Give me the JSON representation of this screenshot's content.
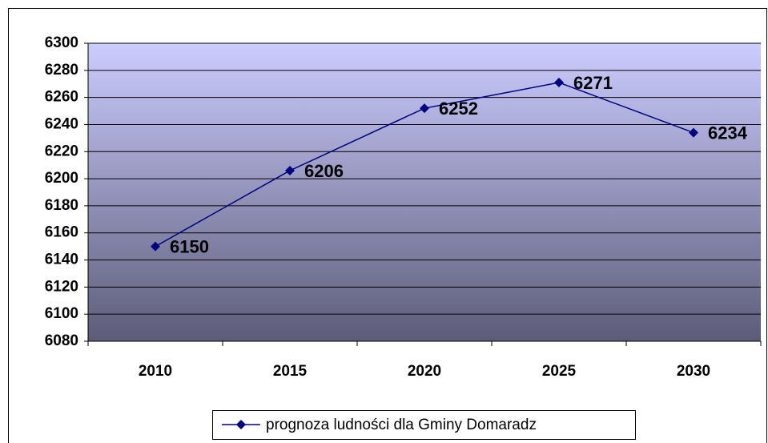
{
  "chart_data": {
    "type": "line",
    "categories": [
      "2010",
      "2015",
      "2020",
      "2025",
      "2030"
    ],
    "series": [
      {
        "name": "prognoza ludności dla Gminy Domaradz",
        "color": "#000080",
        "values": [
          6150,
          6206,
          6252,
          6271,
          6234
        ]
      }
    ],
    "ylim": [
      6080,
      6300
    ],
    "yticks": [
      6080,
      6100,
      6120,
      6140,
      6160,
      6180,
      6200,
      6220,
      6240,
      6260,
      6280,
      6300
    ],
    "grid": true,
    "legend": "bottom"
  }
}
